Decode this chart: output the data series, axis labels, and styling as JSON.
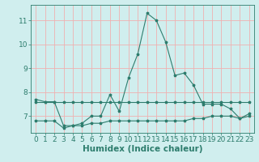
{
  "series1_x": [
    0,
    1,
    2,
    3,
    4,
    5,
    6,
    7,
    8,
    9,
    10,
    11,
    12,
    13,
    14,
    15,
    16,
    17,
    18,
    19,
    20,
    21,
    22,
    23
  ],
  "series1_y": [
    7.7,
    7.6,
    7.6,
    6.6,
    6.6,
    6.7,
    7.0,
    7.0,
    7.9,
    7.2,
    8.6,
    9.6,
    11.3,
    11.0,
    10.1,
    8.7,
    8.8,
    8.3,
    7.5,
    7.5,
    7.5,
    7.3,
    6.9,
    7.1
  ],
  "series2_x": [
    0,
    1,
    2,
    3,
    4,
    5,
    6,
    7,
    8,
    9,
    10,
    11,
    12,
    13,
    14,
    15,
    16,
    17,
    18,
    19,
    20,
    21,
    22,
    23
  ],
  "series2_y": [
    7.6,
    7.6,
    7.6,
    7.6,
    7.6,
    7.6,
    7.6,
    7.6,
    7.6,
    7.6,
    7.6,
    7.6,
    7.6,
    7.6,
    7.6,
    7.6,
    7.6,
    7.6,
    7.6,
    7.6,
    7.6,
    7.6,
    7.6,
    7.6
  ],
  "series3_x": [
    0,
    1,
    2,
    3,
    4,
    5,
    6,
    7,
    8,
    9,
    10,
    11,
    12,
    13,
    14,
    15,
    16,
    17,
    18,
    19,
    20,
    21,
    22,
    23
  ],
  "series3_y": [
    6.8,
    6.8,
    6.8,
    6.5,
    6.6,
    6.6,
    6.7,
    6.7,
    6.8,
    6.8,
    6.8,
    6.8,
    6.8,
    6.8,
    6.8,
    6.8,
    6.8,
    6.9,
    6.9,
    7.0,
    7.0,
    7.0,
    6.9,
    7.0
  ],
  "line_color": "#2e7d6e",
  "bg_color": "#d0eeee",
  "grid_color": "#f0b0b0",
  "xlabel": "Humidex (Indice chaleur)",
  "ylim": [
    6.3,
    11.65
  ],
  "xlim": [
    -0.5,
    23.5
  ],
  "yticks": [
    7,
    8,
    9,
    10,
    11
  ],
  "xticks": [
    0,
    1,
    2,
    3,
    4,
    5,
    6,
    7,
    8,
    9,
    10,
    11,
    12,
    13,
    14,
    15,
    16,
    17,
    18,
    19,
    20,
    21,
    22,
    23
  ],
  "marker": "*",
  "markersize": 2.5,
  "linewidth": 0.8,
  "xlabel_fontsize": 7.5,
  "tick_fontsize": 6.5
}
